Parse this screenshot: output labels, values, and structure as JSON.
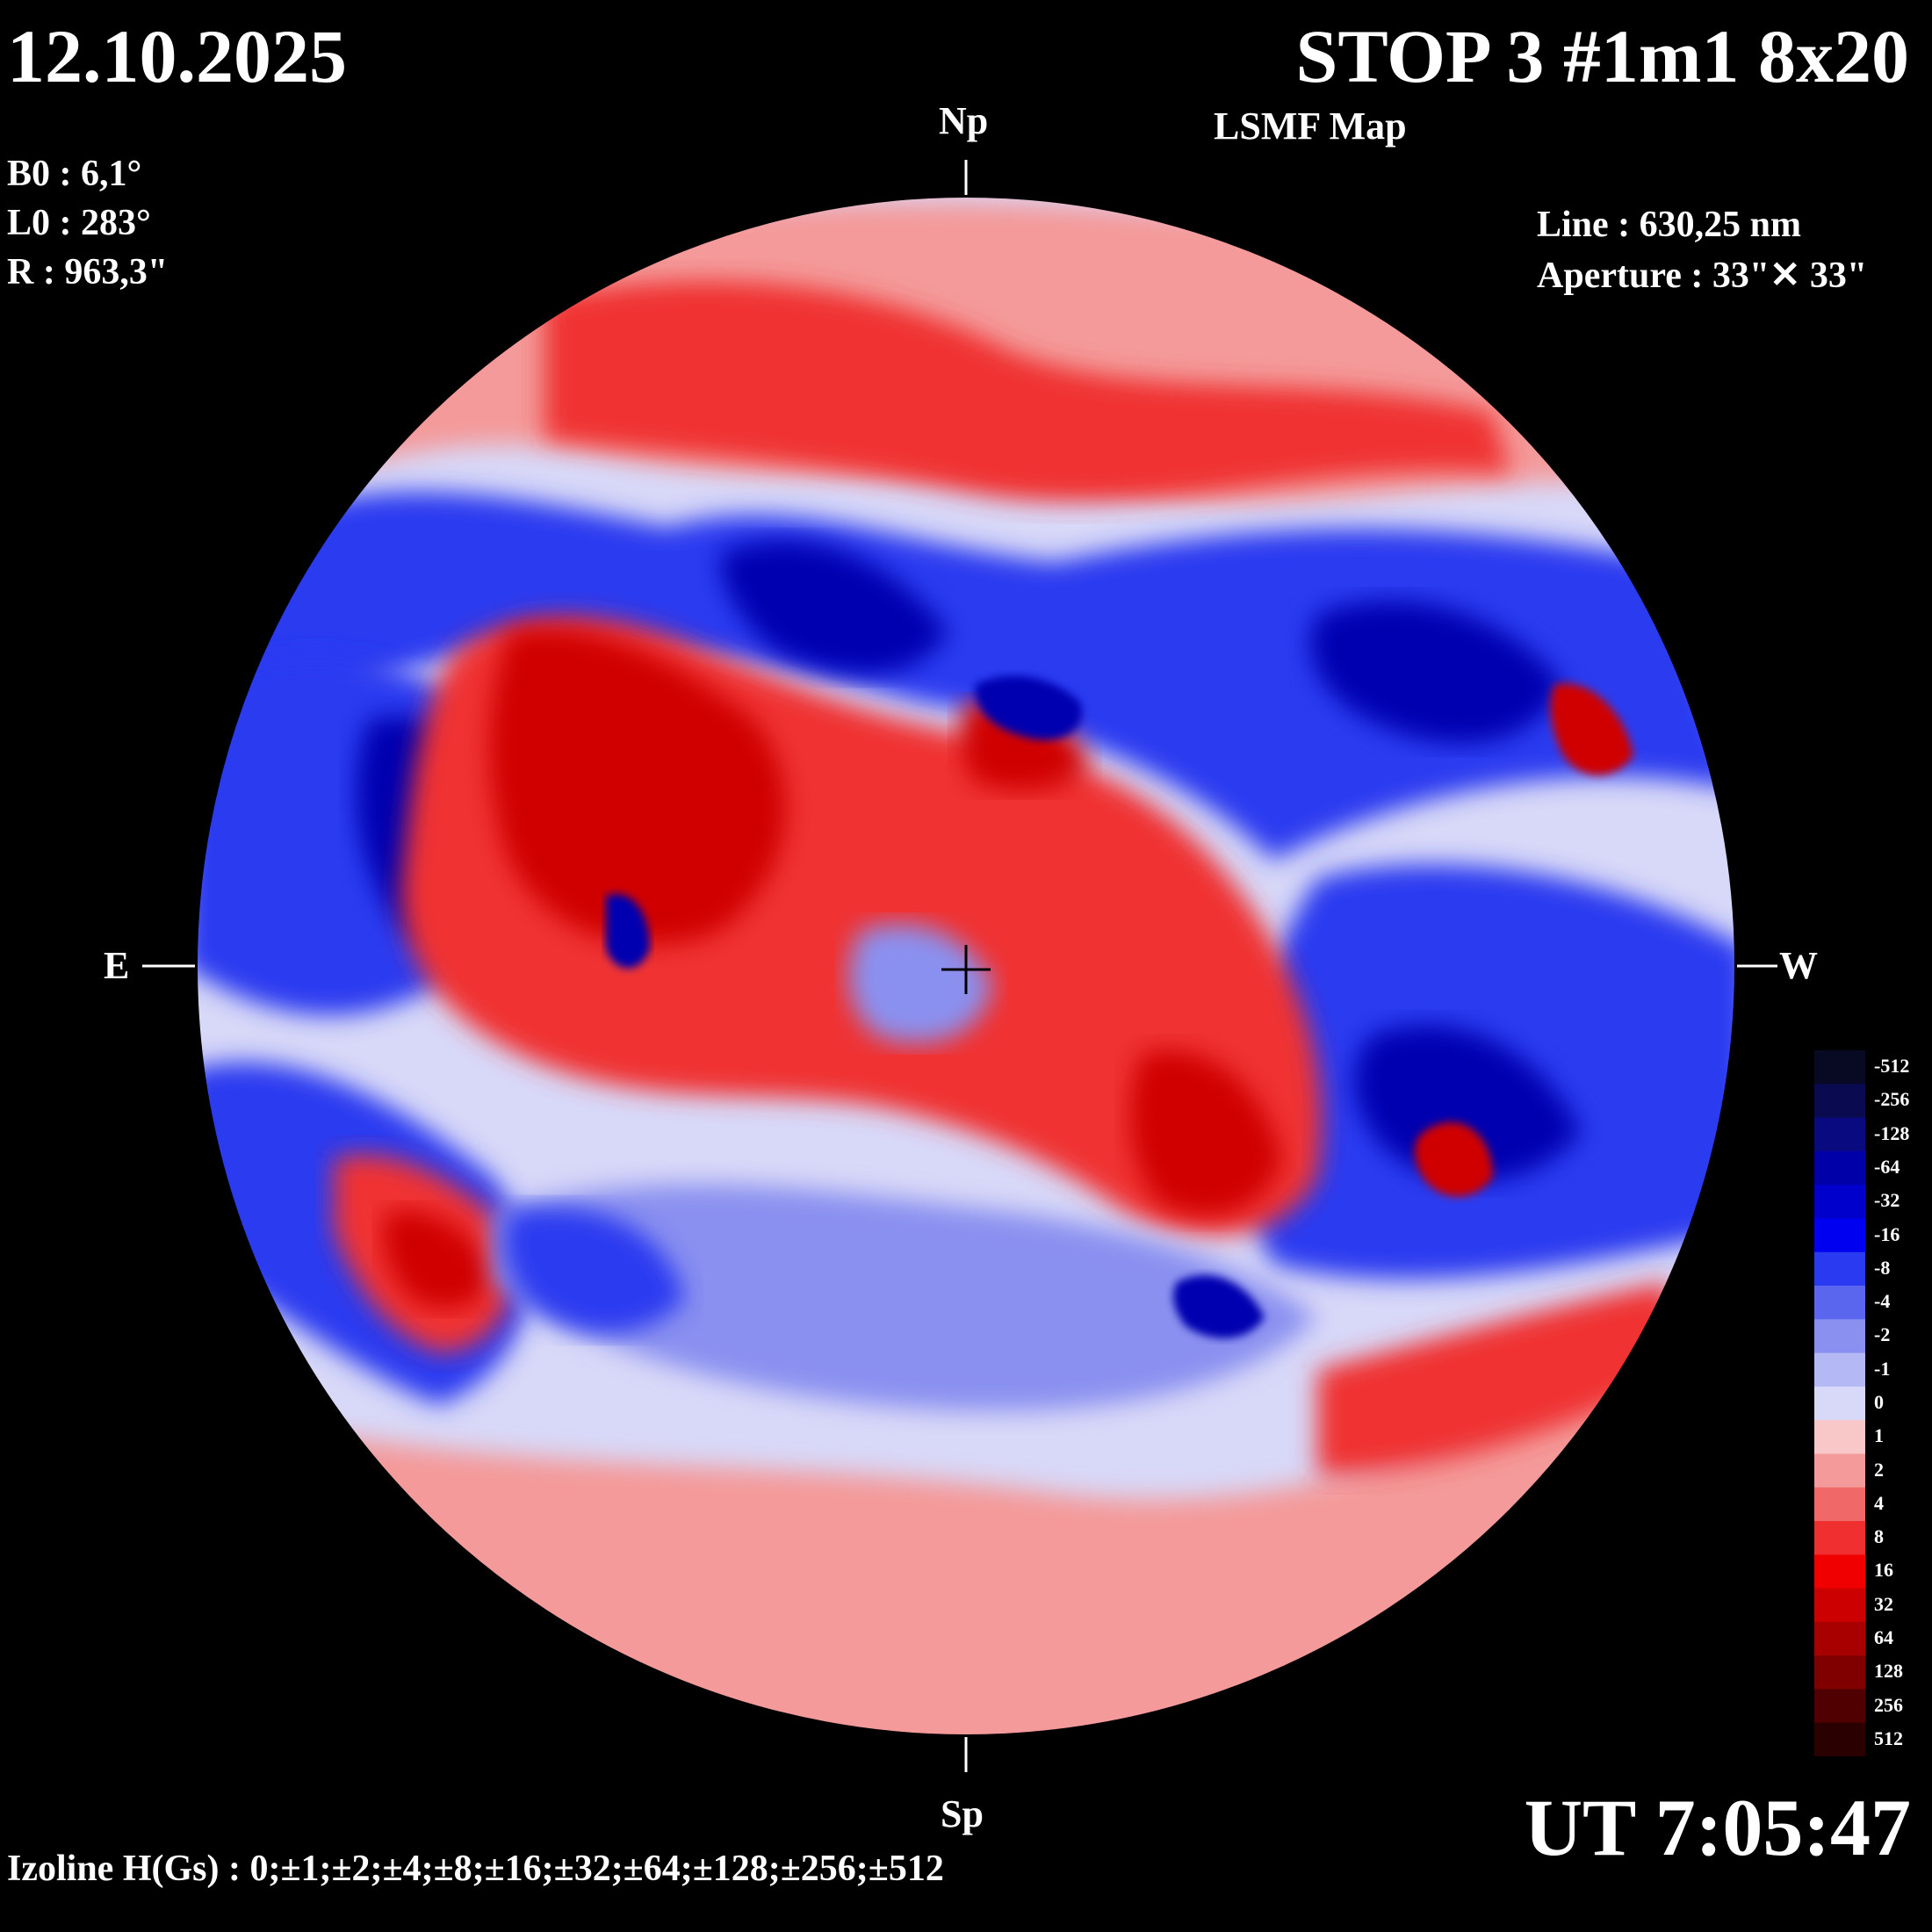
{
  "header": {
    "date": "12.10.2025",
    "title": "STOP 3 #1m1 8x20",
    "subtitle": "LSMF  Map"
  },
  "params": {
    "b0": "B0 : 6,1°",
    "l0": "L0 : 283°",
    "r": "R  : 963,3\"",
    "line": "Line :  630,25 nm",
    "aperture": "Aperture : 33\"✕ 33\""
  },
  "orientation": {
    "north": "Np",
    "south": "Sp",
    "east": "E",
    "west": "W"
  },
  "footer": {
    "time": "UT 7:05:47",
    "izoline": "Izoline H(Gs) : 0;±1;±2;±4;±8;±16;±32;±64;±128;±256;±512"
  },
  "colorbar": {
    "levels": [
      {
        "label": "-512",
        "color": "#080a24"
      },
      {
        "label": "-256",
        "color": "#0a0a50"
      },
      {
        "label": "-128",
        "color": "#0a0a80"
      },
      {
        "label": "-64",
        "color": "#0000a8"
      },
      {
        "label": "-32",
        "color": "#0000cc"
      },
      {
        "label": "-16",
        "color": "#0000f0"
      },
      {
        "label": "-8",
        "color": "#2a3af0"
      },
      {
        "label": "-4",
        "color": "#5a66ee"
      },
      {
        "label": "-2",
        "color": "#8a90f0"
      },
      {
        "label": "-1",
        "color": "#b4b8f4"
      },
      {
        "label": "0",
        "color": "#d8d8f8"
      },
      {
        "label": "1",
        "color": "#f8c8c8"
      },
      {
        "label": "2",
        "color": "#f49a9a"
      },
      {
        "label": "4",
        "color": "#f06868"
      },
      {
        "label": "8",
        "color": "#f03030"
      },
      {
        "label": "16",
        "color": "#f00000"
      },
      {
        "label": "32",
        "color": "#cc0000"
      },
      {
        "label": "64",
        "color": "#a80000"
      },
      {
        "label": "128",
        "color": "#800000"
      },
      {
        "label": "256",
        "color": "#500000"
      },
      {
        "label": "512",
        "color": "#2a0000"
      }
    ]
  },
  "field_regions": {
    "strong_positive": "#d00000",
    "positive": "#f03030",
    "weak_positive": "#f49a9a",
    "neutral": "#d8d8f8",
    "weak_negative": "#8a90f0",
    "negative": "#2a3af0",
    "strong_negative": "#0000b0"
  }
}
